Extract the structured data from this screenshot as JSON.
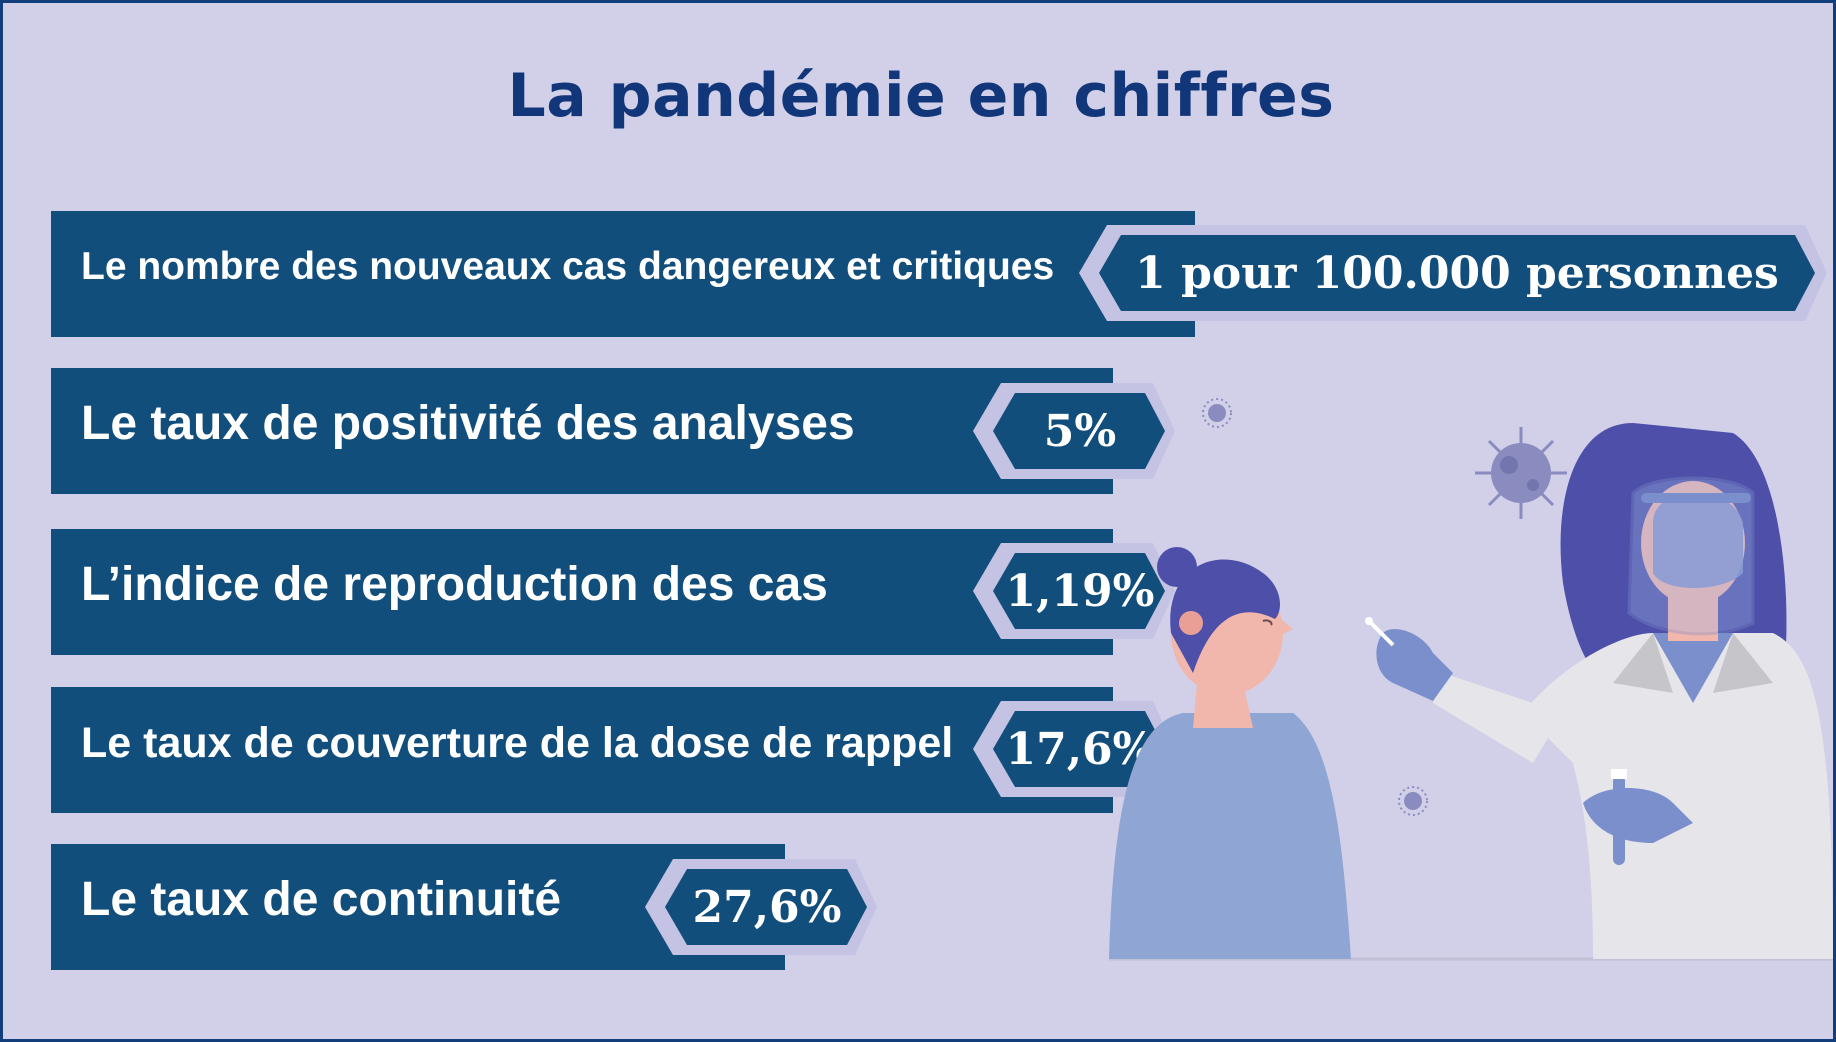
{
  "title": "La pandémie en chiffres",
  "stats": [
    {
      "label": "Le nombre des nouveaux cas dangereux et critiques",
      "value": "1 pour 100.000 personnes"
    },
    {
      "label": "Le taux de positivité des analyses",
      "value": "5%"
    },
    {
      "label": "L’indice de reproduction des cas",
      "value": "1,19%"
    },
    {
      "label": "Le taux de couverture de la dose de rappel",
      "value": "17,6%"
    },
    {
      "label": "Le taux de continuité",
      "value": "27,6%"
    }
  ],
  "colors": {
    "background": "#d1d0e8",
    "title": "#12367a",
    "bar": "#124e7c",
    "badge_outline": "#c4c3e3",
    "text": "#ffffff"
  },
  "illustration": [
    "virus-icon",
    "patient-figure",
    "health-worker-figure",
    "test-swab"
  ]
}
